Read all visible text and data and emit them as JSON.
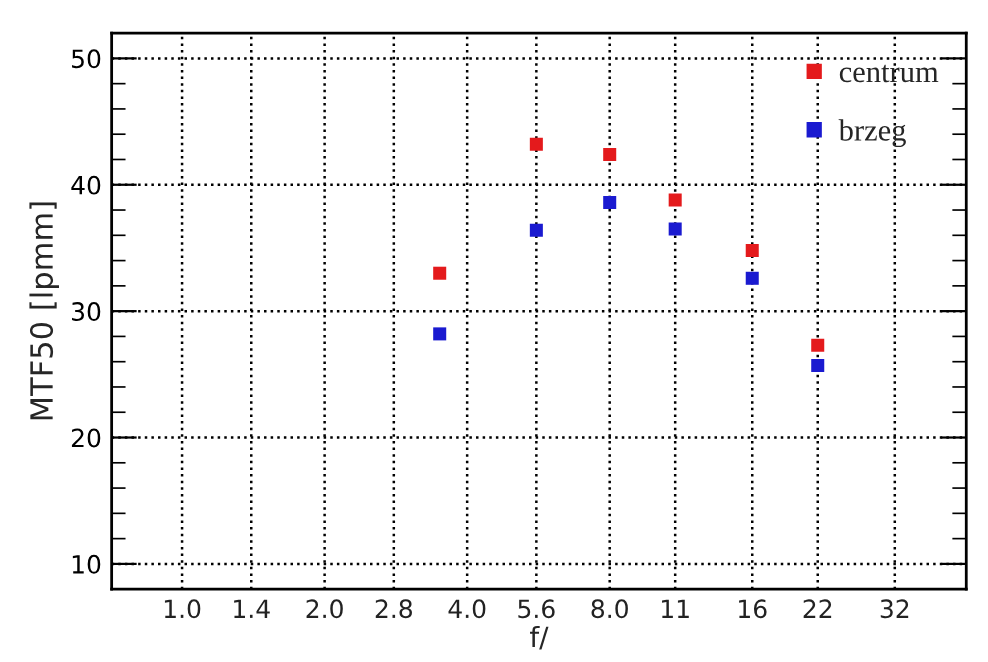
{
  "chart_data": {
    "type": "scatter",
    "xlabel": "f/",
    "ylabel": "MTF50 [lpmm]",
    "x": [
      3.5,
      5.6,
      8,
      11,
      16,
      22
    ],
    "series": [
      {
        "name": "centrum",
        "color": "#e41a1c",
        "values": [
          33.0,
          43.2,
          42.4,
          38.8,
          34.8,
          27.3
        ]
      },
      {
        "name": "brzeg",
        "color": "#1a1ad0",
        "values": [
          28.2,
          36.4,
          38.6,
          36.5,
          32.6,
          25.7
        ]
      }
    ],
    "log": "x",
    "xlim": [
      0.71,
      45.3
    ],
    "ylim": [
      8,
      52
    ],
    "xticks": [
      {
        "value": 1,
        "label": "1.0"
      },
      1.4,
      {
        "value": 2,
        "label": "2.0"
      },
      2.8,
      {
        "value": 4,
        "label": "4.0"
      },
      5.6,
      {
        "value": 8,
        "label": "8.0"
      },
      11,
      {
        "value": 16,
        "label": "16"
      },
      22,
      {
        "value": 32,
        "label": "32"
      }
    ],
    "yticks": [
      10,
      20,
      30,
      40,
      50
    ],
    "grid": true,
    "legend": "top right",
    "marker": "square"
  }
}
